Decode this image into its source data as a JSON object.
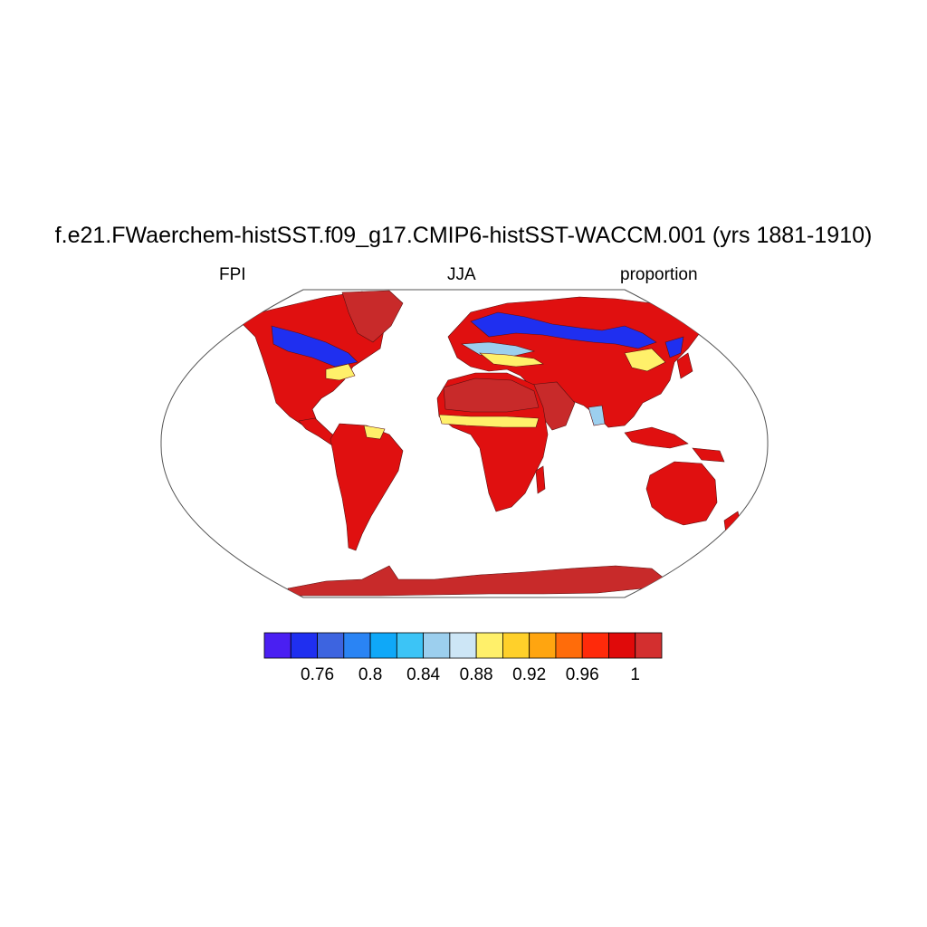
{
  "title": "f.e21.FWaerchem-histSST.f09_g17.CMIP6-histSST-WACCM.001 (yrs 1881-1910)",
  "left_label": "FPI",
  "center_label": "JJA",
  "right_label": "proportion",
  "colorbar": {
    "colors": [
      "#4a1ff2",
      "#1f2ff0",
      "#3d64e0",
      "#2a84f4",
      "#0fa8f8",
      "#3cc4f6",
      "#9ccfee",
      "#cde6f6",
      "#fff06a",
      "#ffd02a",
      "#ffa510",
      "#ff6c0a",
      "#ff2a0a",
      "#e00a0a",
      "#d32f2f"
    ],
    "tick_labels": [
      "0.76",
      "0.8",
      "0.84",
      "0.88",
      "0.92",
      "0.96",
      "1"
    ]
  },
  "map_colors": {
    "land_base": "#e01010",
    "land_dark": "#c82a2a",
    "mid": "#ff6c0a",
    "yellow": "#fff06a",
    "light_blue": "#9ccfee",
    "blue": "#1f2ff0",
    "violet": "#4a1ff2"
  }
}
